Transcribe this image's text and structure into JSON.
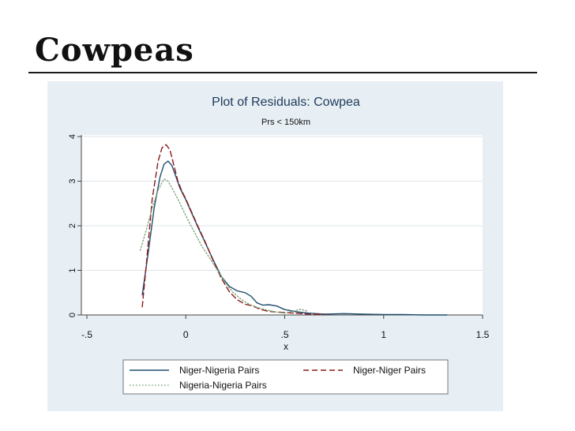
{
  "slide": {
    "title": "Cowpeas"
  },
  "chart_data": {
    "type": "line",
    "title": "Plot of Residuals: Cowpea",
    "subtitle": "Prs < 150km",
    "xlabel": "x",
    "ylabel": "",
    "xlim": [
      -0.5,
      1.5
    ],
    "ylim": [
      0,
      4
    ],
    "xticks": [
      -0.5,
      0,
      0.5,
      1,
      1.5
    ],
    "xtick_labels": [
      "-.5",
      "0",
      ".5",
      "1",
      "1.5"
    ],
    "yticks": [
      0,
      1,
      2,
      3,
      4
    ],
    "ytick_labels": [
      "0",
      "1",
      "2",
      "3",
      "4"
    ],
    "grid": true,
    "legend_position": "bottom",
    "series": [
      {
        "name": "Niger-Nigeria Pairs",
        "color": "#1f4e6e",
        "style": "solid",
        "x": [
          -0.22,
          -0.19,
          -0.16,
          -0.13,
          -0.11,
          -0.09,
          -0.07,
          -0.05,
          -0.03,
          0.0,
          0.03,
          0.06,
          0.1,
          0.14,
          0.18,
          0.22,
          0.26,
          0.3,
          0.33,
          0.36,
          0.39,
          0.42,
          0.46,
          0.5,
          0.56,
          0.62,
          0.7,
          0.8,
          0.9,
          1.0,
          1.1,
          1.2,
          1.32
        ],
        "y": [
          0.45,
          1.4,
          2.4,
          3.1,
          3.38,
          3.45,
          3.35,
          3.1,
          2.85,
          2.58,
          2.28,
          1.98,
          1.6,
          1.22,
          0.86,
          0.64,
          0.54,
          0.5,
          0.42,
          0.27,
          0.22,
          0.23,
          0.2,
          0.12,
          0.07,
          0.04,
          0.02,
          0.03,
          0.02,
          0.01,
          0.01,
          0.0,
          0.0
        ]
      },
      {
        "name": "Niger-Niger Pairs",
        "color": "#8b1a1a",
        "style": "dash",
        "x": [
          -0.22,
          -0.2,
          -0.17,
          -0.14,
          -0.12,
          -0.1,
          -0.08,
          -0.06,
          -0.04,
          -0.02,
          0.0,
          0.03,
          0.06,
          0.1,
          0.14,
          0.18,
          0.22,
          0.26,
          0.3,
          0.34,
          0.38,
          0.42,
          0.48,
          0.55,
          0.62,
          0.7
        ],
        "y": [
          0.18,
          1.1,
          2.6,
          3.45,
          3.75,
          3.82,
          3.7,
          3.35,
          3.0,
          2.78,
          2.6,
          2.3,
          2.0,
          1.62,
          1.2,
          0.82,
          0.52,
          0.34,
          0.24,
          0.2,
          0.12,
          0.08,
          0.06,
          0.04,
          0.02,
          0.01
        ]
      },
      {
        "name": "Nigeria-Nigeria Pairs",
        "color": "#7fa77f",
        "style": "dot",
        "x": [
          -0.23,
          -0.2,
          -0.17,
          -0.14,
          -0.11,
          -0.09,
          -0.07,
          -0.04,
          -0.01,
          0.02,
          0.05,
          0.08,
          0.12,
          0.16,
          0.2,
          0.24,
          0.28,
          0.32,
          0.36,
          0.4,
          0.45,
          0.5,
          0.58,
          0.62
        ],
        "y": [
          1.45,
          1.9,
          2.4,
          2.8,
          3.05,
          3.0,
          2.85,
          2.6,
          2.32,
          2.05,
          1.8,
          1.55,
          1.28,
          1.0,
          0.72,
          0.5,
          0.35,
          0.24,
          0.17,
          0.12,
          0.07,
          0.04,
          0.13,
          0.08
        ]
      }
    ]
  }
}
